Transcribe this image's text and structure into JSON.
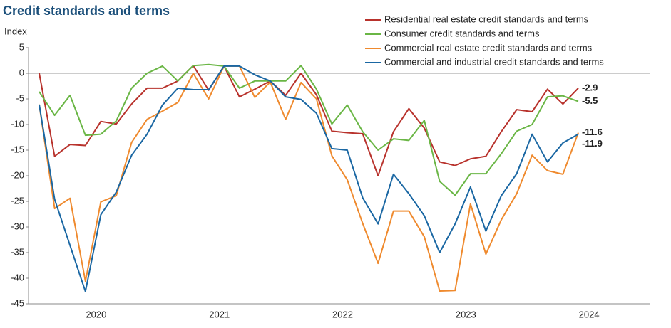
{
  "chart_data": {
    "type": "line",
    "title": "Credit standards and terms",
    "y_label": "Index",
    "categories": [
      null,
      null,
      null,
      "2020",
      null,
      null,
      null,
      null,
      null,
      null,
      null,
      "2021",
      null,
      null,
      null,
      null,
      null,
      null,
      null,
      "2022",
      null,
      null,
      null,
      null,
      null,
      null,
      null,
      "2023",
      null,
      null,
      null,
      null,
      null,
      null,
      null,
      "2024"
    ],
    "ylim": [
      -45,
      5
    ],
    "yticks": [
      5,
      0,
      -5,
      -10,
      -15,
      -20,
      -25,
      -30,
      -35,
      -40,
      -45
    ],
    "legend": "top-right",
    "series": [
      {
        "name": "Residential real estate credit standards and terms",
        "color": "#b8322c",
        "values": [
          0,
          -16.2,
          -13.9,
          -14.1,
          -9.4,
          -9.9,
          -6.0,
          -2.9,
          -2.9,
          -1.5,
          1.5,
          -3.3,
          1.4,
          -4.6,
          -3.1,
          -1.5,
          -4.3,
          0,
          -4.2,
          -11.3,
          -11.6,
          -11.8,
          -20,
          -11.4,
          -6.9,
          -10.7,
          -17.3,
          -18,
          -16.7,
          -16.2,
          -11.4,
          -7.1,
          -7.5,
          -3.1,
          -6.0,
          -2.9
        ]
      },
      {
        "name": "Consumer credit standards and terms",
        "color": "#6ab645",
        "values": [
          -3.6,
          -8.2,
          -4.3,
          -12.1,
          -11.9,
          -9.3,
          -2.9,
          0,
          1.4,
          -1.5,
          1.5,
          1.7,
          1.4,
          -2.9,
          -1.5,
          -1.5,
          -1.5,
          1.5,
          -3.1,
          -9.9,
          -6.2,
          -11.4,
          -15,
          -12.8,
          -13.1,
          -9.2,
          -21.1,
          -23.8,
          -19.6,
          -19.6,
          -15.7,
          -11.3,
          -10,
          -4.6,
          -4.4,
          -5.5
        ]
      },
      {
        "name": "Commercial real estate credit standards and terms",
        "color": "#ef8a2e",
        "values": [
          -6.1,
          -26.4,
          -24.4,
          -40.6,
          -25.1,
          -23.9,
          -13.5,
          -9.0,
          -7.4,
          -5.7,
          0,
          -5.0,
          1.4,
          1.4,
          -4.7,
          -1.7,
          -9.0,
          -1.8,
          -5.0,
          -16.1,
          -20.8,
          -29.3,
          -37.1,
          -26.9,
          -26.9,
          -31.9,
          -42.5,
          -42.4,
          -25.5,
          -35.3,
          -28.6,
          -23.5,
          -16,
          -19,
          -19.7,
          -11.6
        ]
      },
      {
        "name": "Commercial and industrial credit standards and terms",
        "color": "#1a67a3",
        "values": [
          -6.1,
          -24.6,
          -33.6,
          -42.6,
          -27.6,
          -23.2,
          -16,
          -11.9,
          -6.2,
          -2.9,
          -3.2,
          -3.2,
          1.4,
          1.4,
          -0.3,
          -1.5,
          -4.6,
          -5.1,
          -7.8,
          -14.7,
          -15,
          -24.3,
          -29.4,
          -19.7,
          -23.5,
          -27.8,
          -35,
          -29.4,
          -22.2,
          -30.8,
          -23.9,
          -19.6,
          -11.9,
          -17.3,
          -13.6,
          -11.9
        ]
      }
    ]
  }
}
